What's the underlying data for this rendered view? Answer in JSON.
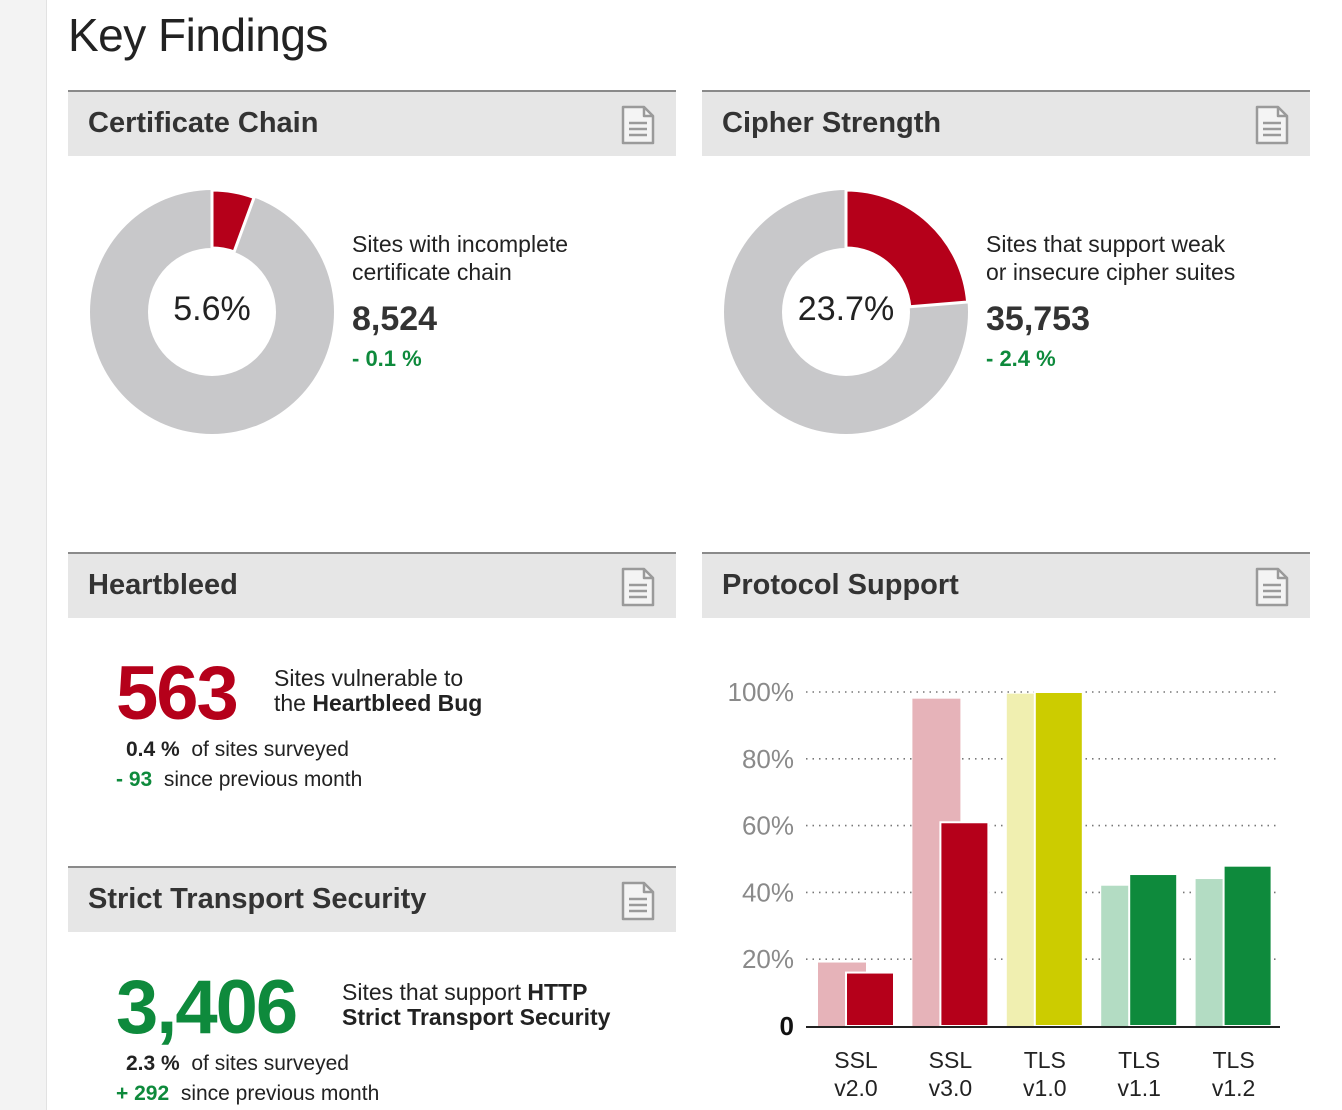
{
  "page": {
    "title": "Key Findings"
  },
  "certificate_chain": {
    "title": "Certificate Chain",
    "percent_label": "5.6%",
    "percent": 5.6,
    "desc_line1": "Sites with incomplete",
    "desc_line2": "certificate chain",
    "value": "8,524",
    "change": "- 0.1 %"
  },
  "cipher_strength": {
    "title": "Cipher Strength",
    "percent_label": "23.7%",
    "percent": 23.7,
    "desc_line1": "Sites that support weak",
    "desc_line2": "or insecure cipher suites",
    "value": "35,753",
    "change": "- 2.4 %"
  },
  "heartbleed": {
    "title": "Heartbleed",
    "value": "563",
    "desc_line1": "Sites vulnerable to",
    "desc_line2_prefix": "the",
    "desc_line2_bold": "Heartbleed Bug",
    "percent": "0.4 %",
    "percent_suffix": "of sites surveyed",
    "change": "- 93",
    "change_suffix": "since previous month"
  },
  "hsts": {
    "title": "Strict Transport Security",
    "value": "3,406",
    "desc_line1_prefix": "Sites that support",
    "desc_line1_bold": "HTTP",
    "desc_line2_bold": "Strict Transport Security",
    "percent": "2.3 %",
    "percent_suffix": "of sites surveyed",
    "change": "+ 292",
    "change_suffix": "since previous month"
  },
  "protocol_support": {
    "title": "Protocol Support"
  },
  "colors": {
    "accent_red": "#b5001a",
    "donut_gray": "#c8c8ca",
    "positive_green": "#0e8a3c"
  },
  "chart_data": {
    "type": "bar",
    "categories": [
      {
        "line1": "SSL",
        "line2": "v2.0"
      },
      {
        "line1": "SSL",
        "line2": "v3.0"
      },
      {
        "line1": "TLS",
        "line2": "v1.0"
      },
      {
        "line1": "TLS",
        "line2": "v1.1"
      },
      {
        "line1": "TLS",
        "line2": "v1.2"
      }
    ],
    "series": [
      {
        "values": [
          19,
          98,
          99.5,
          42,
          44
        ],
        "colors": [
          "#e6b3b9",
          "#e6b3b9",
          "#f0efb0",
          "#b3dcc3",
          "#b3dcc3"
        ]
      },
      {
        "values": [
          16,
          61,
          100,
          45.5,
          48
        ],
        "colors": [
          "#b5001a",
          "#b5001a",
          "#cccc00",
          "#0e8a3c",
          "#0e8a3c"
        ]
      }
    ],
    "yticks": [
      "0",
      "20%",
      "40%",
      "60%",
      "80%",
      "100%"
    ],
    "ylim": [
      0,
      100
    ],
    "grid": true
  }
}
